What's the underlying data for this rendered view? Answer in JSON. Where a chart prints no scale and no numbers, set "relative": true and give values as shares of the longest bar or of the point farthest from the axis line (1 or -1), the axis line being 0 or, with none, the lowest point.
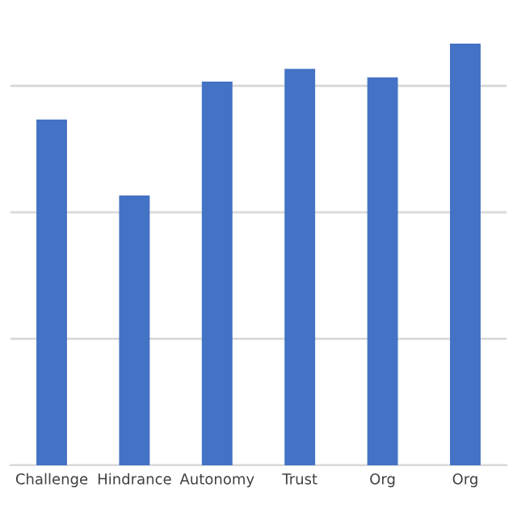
{
  "chart_data": {
    "type": "bar",
    "relative": true,
    "categories": [
      "Challenge",
      "Hindrance",
      "Autonomy",
      "Trust",
      "Org",
      "Org"
    ],
    "values": [
      0.82,
      0.64,
      0.91,
      0.94,
      0.92,
      1.0
    ],
    "color": "#4472c4",
    "grid": "y",
    "legend": false
  }
}
